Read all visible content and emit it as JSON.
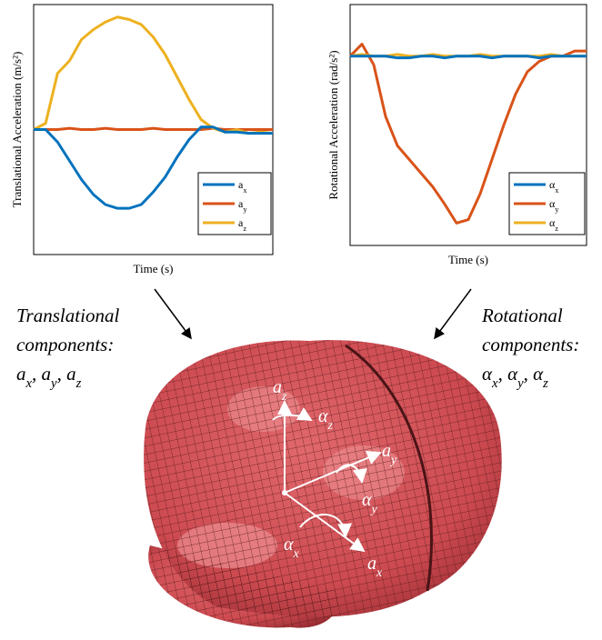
{
  "chart_data": [
    {
      "type": "line",
      "ylabel": "Translational Acceleration (m/s²)",
      "xlabel": "Time (s)",
      "ylim": [
        -1,
        1
      ],
      "series": [
        {
          "name": "ax",
          "color": "#0072bd",
          "values": [
            0,
            0,
            -0.1,
            -0.25,
            -0.4,
            -0.52,
            -0.6,
            -0.63,
            -0.63,
            -0.6,
            -0.5,
            -0.38,
            -0.22,
            -0.08,
            0.02,
            0.02,
            -0.02,
            -0.02,
            -0.03,
            -0.03,
            -0.03
          ]
        },
        {
          "name": "ay",
          "color": "#d95319",
          "values": [
            0,
            0,
            0,
            0.01,
            0,
            0,
            0.01,
            0,
            0,
            0,
            0.01,
            0,
            0,
            0,
            0,
            0.01,
            0,
            0,
            0,
            0,
            0
          ]
        },
        {
          "name": "az",
          "color": "#edb120",
          "values": [
            0,
            0.05,
            0.45,
            0.55,
            0.72,
            0.8,
            0.86,
            0.9,
            0.88,
            0.84,
            0.74,
            0.6,
            0.42,
            0.24,
            0.08,
            0.01,
            -0.02,
            0,
            -0.03,
            -0.02,
            -0.03
          ]
        }
      ]
    },
    {
      "type": "line",
      "ylabel": "Rotational Acceleration (rad/s²)",
      "xlabel": "Time (s)",
      "ylim": [
        -1.1,
        0.3
      ],
      "series": [
        {
          "name": "αx",
          "color": "#0072bd",
          "values": [
            0,
            0,
            0,
            0,
            -0.01,
            -0.01,
            0,
            0,
            -0.01,
            0,
            0,
            0,
            -0.01,
            0,
            0,
            0,
            -0.01,
            0,
            0,
            0,
            0
          ]
        },
        {
          "name": "αy",
          "color": "#d95319",
          "values": [
            0,
            0.07,
            -0.05,
            -0.35,
            -0.52,
            -0.6,
            -0.68,
            -0.76,
            -0.86,
            -0.97,
            -0.95,
            -0.8,
            -0.6,
            -0.4,
            -0.22,
            -0.09,
            -0.03,
            0,
            0,
            0.03,
            0.03
          ]
        },
        {
          "name": "αz",
          "color": "#edb120",
          "values": [
            0,
            0.01,
            0,
            0,
            0.01,
            0,
            0,
            0.01,
            0,
            0,
            0,
            0.01,
            0,
            0,
            0,
            0,
            0,
            0.01,
            0,
            0,
            0
          ]
        }
      ]
    }
  ],
  "annotations": {
    "left": [
      "Translational",
      "components:",
      "ax, ay, az"
    ],
    "right": [
      "Rotational",
      "components:",
      "αx, αy, αz"
    ],
    "brain": [
      "az",
      "αz",
      "ay",
      "αy",
      "ax",
      "αx"
    ]
  }
}
